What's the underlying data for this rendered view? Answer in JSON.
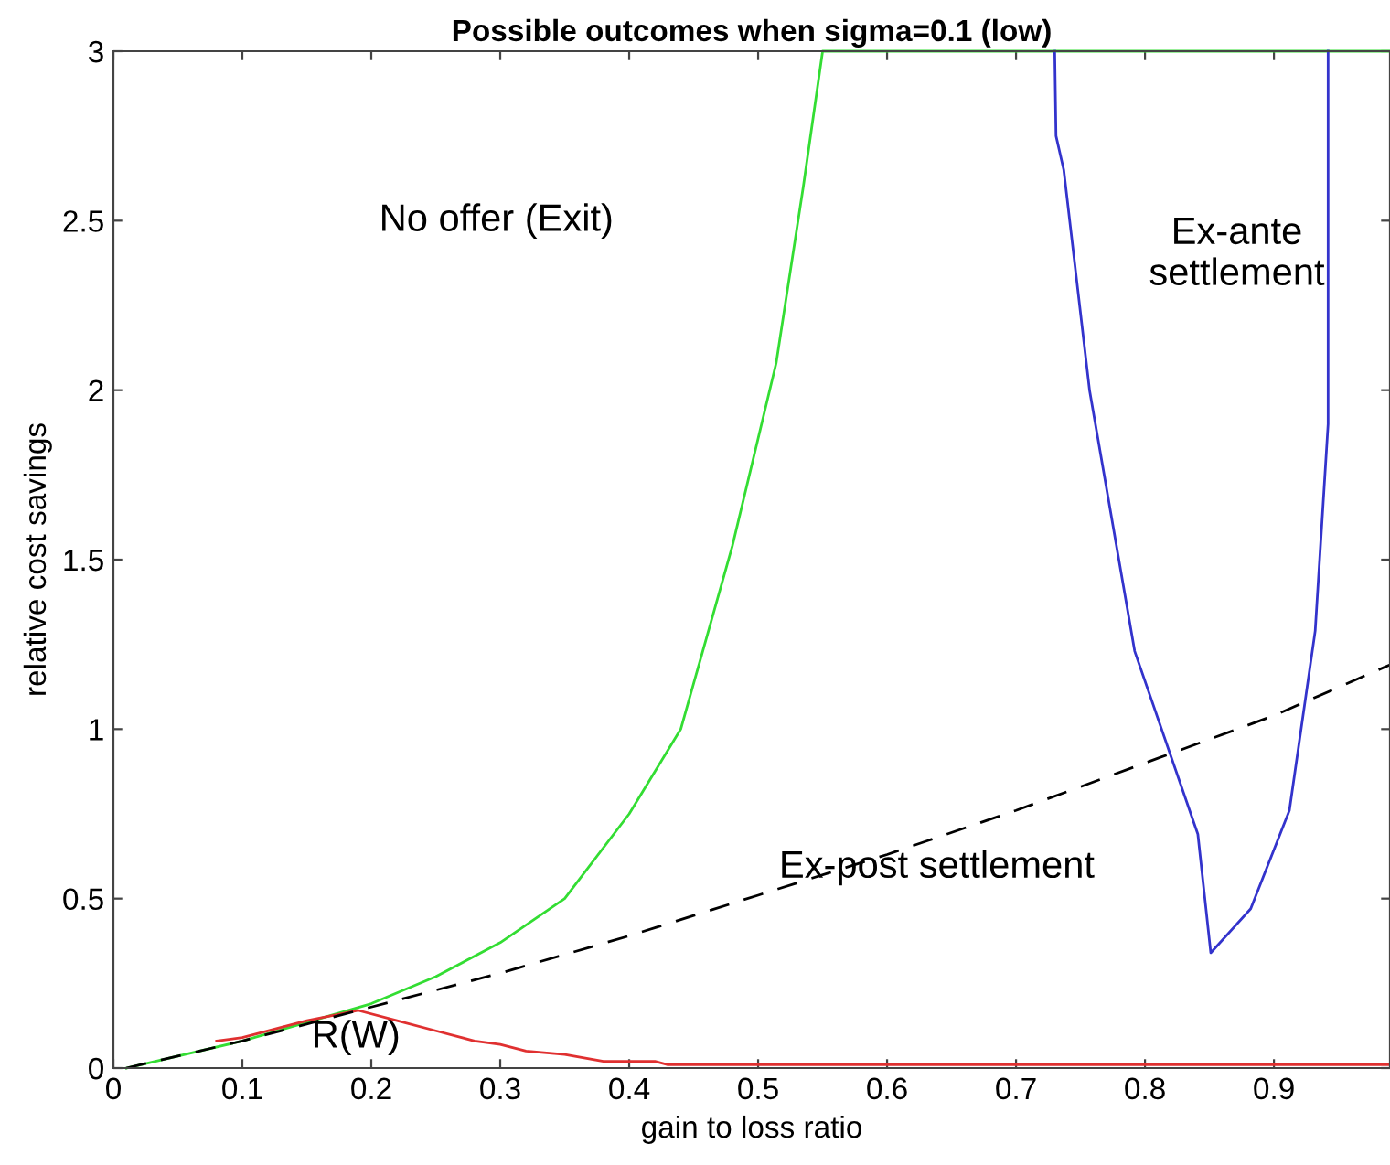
{
  "chart_data": {
    "type": "line",
    "title": "Possible outcomes when sigma=0.1 (low)",
    "xlabel": "gain to loss ratio",
    "ylabel": "relative cost savings",
    "xlim": [
      0,
      0.99
    ],
    "ylim": [
      0,
      3
    ],
    "xticks": [
      0,
      0.1,
      0.2,
      0.3,
      0.4,
      0.5,
      0.6,
      0.7,
      0.8,
      0.9
    ],
    "yticks": [
      0,
      0.5,
      1,
      1.5,
      2,
      2.5,
      3
    ],
    "grid": false,
    "legend": false,
    "marker": "none",
    "series": [
      {
        "color": "#33dd33",
        "line_style": "solid",
        "x": [
          0.01,
          0.1,
          0.2,
          0.25,
          0.3,
          0.35,
          0.4,
          0.44,
          0.48,
          0.514,
          0.535,
          0.55,
          0.99
        ],
        "values": [
          0,
          0.08,
          0.19,
          0.27,
          0.37,
          0.5,
          0.75,
          1.0,
          1.54,
          2.08,
          2.6,
          3,
          3
        ]
      },
      {
        "color": "#e03030",
        "line_style": "solid",
        "x": [
          0.08,
          0.1,
          0.15,
          0.19,
          0.22,
          0.25,
          0.28,
          0.3,
          0.32,
          0.35,
          0.38,
          0.42,
          0.43,
          0.99
        ],
        "values": [
          0.08,
          0.09,
          0.14,
          0.17,
          0.14,
          0.11,
          0.08,
          0.07,
          0.05,
          0.04,
          0.02,
          0.02,
          0.01,
          0.01
        ]
      },
      {
        "color": "#3333cc",
        "line_style": "solid",
        "x": [
          0.73,
          0.731,
          0.737,
          0.757,
          0.792,
          0.841,
          0.851,
          0.882,
          0.912,
          0.932,
          0.942,
          0.942
        ],
        "values": [
          3,
          2.75,
          2.65,
          2.0,
          1.23,
          0.69,
          0.34,
          0.47,
          0.76,
          1.29,
          1.9,
          3
        ]
      },
      {
        "color": "#000000",
        "line_style": "dashed",
        "x": [
          0.01,
          0.1,
          0.2,
          0.3,
          0.4,
          0.5,
          0.6,
          0.7,
          0.8,
          0.9,
          0.99
        ],
        "values": [
          0,
          0.08,
          0.18,
          0.28,
          0.39,
          0.51,
          0.63,
          0.76,
          0.9,
          1.04,
          1.19
        ]
      }
    ],
    "annotations": [
      "No offer (Exit)",
      "Ex-ante\nsettlement",
      "Ex-post settlement",
      "R(W)"
    ]
  }
}
